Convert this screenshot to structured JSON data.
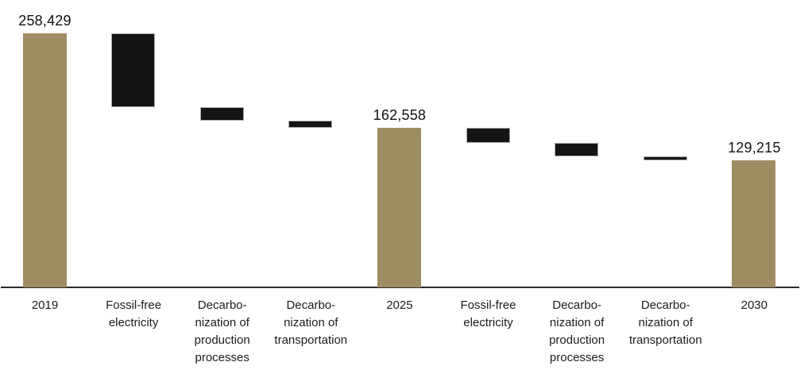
{
  "chart_data": {
    "type": "bar",
    "variant": "waterfall",
    "title": "",
    "xlabel": "",
    "ylabel": "",
    "ylim": [
      0,
      258429
    ],
    "gridlines": false,
    "legend": "none",
    "colors": {
      "total_bar": "#9e8d63",
      "change_bar": "#141414",
      "change_bar_border": "#a9a9a9",
      "axis_line": "#2b2b2b",
      "label_text": "#1c1c1c"
    },
    "columns": [
      {
        "label": "2019",
        "role": "total",
        "value": 258429,
        "data_label": "258,429"
      },
      {
        "label": "Fossil-free\nelectricity",
        "role": "decrease",
        "value": 75000
      },
      {
        "label": "Decarbo-\nnization of\nproduction\nprocesses",
        "role": "decrease",
        "value": 13600
      },
      {
        "label": "Decarbo-\nnization of\ntransportation",
        "role": "decrease",
        "value": 7270
      },
      {
        "label": "2025",
        "role": "total",
        "value": 162558,
        "data_label": "162,558"
      },
      {
        "label": "Fossil-free\nelectricity",
        "role": "decrease",
        "value": 15500
      },
      {
        "label": "Decarbo-\nnization of\nproduction\nprocesses",
        "role": "decrease",
        "value": 13900
      },
      {
        "label": "Decarbo-\nnization of\ntransportation",
        "role": "decrease",
        "value": 3950
      },
      {
        "label": "2030",
        "role": "total",
        "value": 129215,
        "data_label": "129,215"
      }
    ]
  }
}
